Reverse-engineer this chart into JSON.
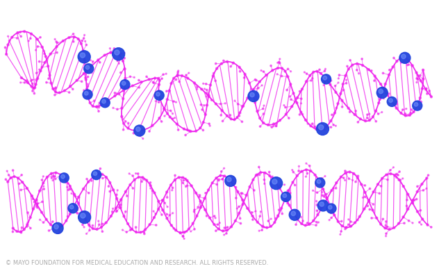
{
  "background_color": "#ffffff",
  "caption": "© MAYO FOUNDATION FOR MEDICAL EDUCATION AND RESEARCH. ALL RIGHTS RESERVED.",
  "caption_color": "#aaaaaa",
  "caption_fontsize": 6.0,
  "helix_color": "#ee22ee",
  "helix_color2": "#cc00cc",
  "sphere_color": "#2244dd",
  "sphere_color2": "#4466ff",
  "fig_width": 6.32,
  "fig_height": 3.9,
  "dpi": 100
}
